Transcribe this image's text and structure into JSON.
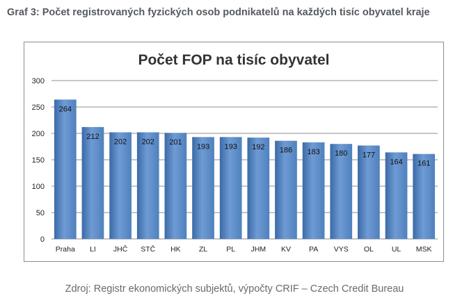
{
  "page": {
    "heading": "Graf 3: Počet registrovaných fyzických osob podnikatelů na každých tisíc obyvatel kraje",
    "source": "Zdroj: Registr ekonomických subjektů, výpočty CRIF – Czech Credit Bureau"
  },
  "colors": {
    "bar": "#4f81bd",
    "bar_light": "#6f9bd4",
    "bar_dark": "#3a6aa7",
    "gridline": "#8c8c8c",
    "text": "#222222"
  },
  "chart_data": {
    "type": "bar",
    "title": "Počet FOP na tisíc obyvatel",
    "xlabel": "",
    "ylabel": "",
    "categories": [
      "Praha",
      "LI",
      "JHČ",
      "STČ",
      "HK",
      "ZL",
      "PL",
      "JHM",
      "KV",
      "PA",
      "VYS",
      "OL",
      "UL",
      "MSK"
    ],
    "values": [
      264,
      212,
      202,
      202,
      201,
      193,
      193,
      192,
      186,
      183,
      180,
      177,
      164,
      161
    ],
    "ylim": [
      0,
      300
    ],
    "yticks": [
      0,
      50,
      100,
      150,
      200,
      250,
      300
    ],
    "grid": true,
    "legend": "none",
    "data_labels": true
  }
}
